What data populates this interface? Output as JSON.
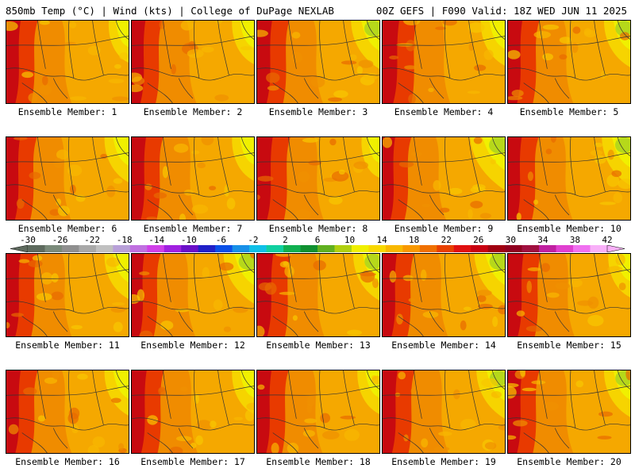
{
  "header": {
    "left": "850mb Temp (°C) | Wind (kts) | College of DuPage NEXLAB",
    "right": "00Z GEFS | F090 Valid: 18Z WED JUN 11 2025"
  },
  "members": [
    {
      "label": "Ensemble Member: 1",
      "warmth": 0.55,
      "cool_ne": 0.35
    },
    {
      "label": "Ensemble Member: 2",
      "warmth": 0.5,
      "cool_ne": 0.4
    },
    {
      "label": "Ensemble Member: 3",
      "warmth": 0.6,
      "cool_ne": 0.55
    },
    {
      "label": "Ensemble Member: 4",
      "warmth": 0.75,
      "cool_ne": 0.45
    },
    {
      "label": "Ensemble Member: 5",
      "warmth": 0.55,
      "cool_ne": 0.5
    },
    {
      "label": "Ensemble Member: 6",
      "warmth": 0.5,
      "cool_ne": 0.45
    },
    {
      "label": "Ensemble Member: 7",
      "warmth": 0.55,
      "cool_ne": 0.4
    },
    {
      "label": "Ensemble Member: 8",
      "warmth": 0.65,
      "cool_ne": 0.3
    },
    {
      "label": "Ensemble Member: 9",
      "warmth": 0.4,
      "cool_ne": 0.7
    },
    {
      "label": "Ensemble Member: 10",
      "warmth": 0.5,
      "cool_ne": 0.55
    },
    {
      "label": "Ensemble Member: 11",
      "warmth": 0.55,
      "cool_ne": 0.45
    },
    {
      "label": "Ensemble Member: 12",
      "warmth": 0.4,
      "cool_ne": 0.6
    },
    {
      "label": "Ensemble Member: 13",
      "warmth": 0.7,
      "cool_ne": 0.5
    },
    {
      "label": "Ensemble Member: 14",
      "warmth": 0.55,
      "cool_ne": 0.6
    },
    {
      "label": "Ensemble Member: 15",
      "warmth": 0.65,
      "cool_ne": 0.4
    },
    {
      "label": "Ensemble Member: 16",
      "warmth": 0.55,
      "cool_ne": 0.45
    },
    {
      "label": "Ensemble Member: 17",
      "warmth": 0.6,
      "cool_ne": 0.4
    },
    {
      "label": "Ensemble Member: 18",
      "warmth": 0.55,
      "cool_ne": 0.4
    },
    {
      "label": "Ensemble Member: 19",
      "warmth": 0.6,
      "cool_ne": 0.55
    },
    {
      "label": "Ensemble Member: 20",
      "warmth": 0.55,
      "cool_ne": 0.5
    }
  ],
  "colorbar": {
    "labels": [
      "-30",
      "-26",
      "-22",
      "-18",
      "-14",
      "-10",
      "-6",
      "-2",
      "2",
      "6",
      "10",
      "14",
      "18",
      "22",
      "26",
      "30",
      "34",
      "38",
      "42"
    ],
    "colors": [
      "#5e6a5e",
      "#7a8a7a",
      "#8f8f8f",
      "#a8a8a8",
      "#c0c0c0",
      "#b8a0d8",
      "#c070e0",
      "#d040e8",
      "#a020e0",
      "#6a10c8",
      "#2020c8",
      "#0a50e8",
      "#1890e8",
      "#10c0e8",
      "#10d0a0",
      "#10b050",
      "#109030",
      "#60b020",
      "#b0d010",
      "#f0f000",
      "#f8d800",
      "#f8b800",
      "#f89800",
      "#f07000",
      "#e84000",
      "#e01010",
      "#c80010",
      "#a00010",
      "#900020",
      "#a01040",
      "#c020a0",
      "#e040d0",
      "#f070f0",
      "#f8b0f8"
    ]
  }
}
